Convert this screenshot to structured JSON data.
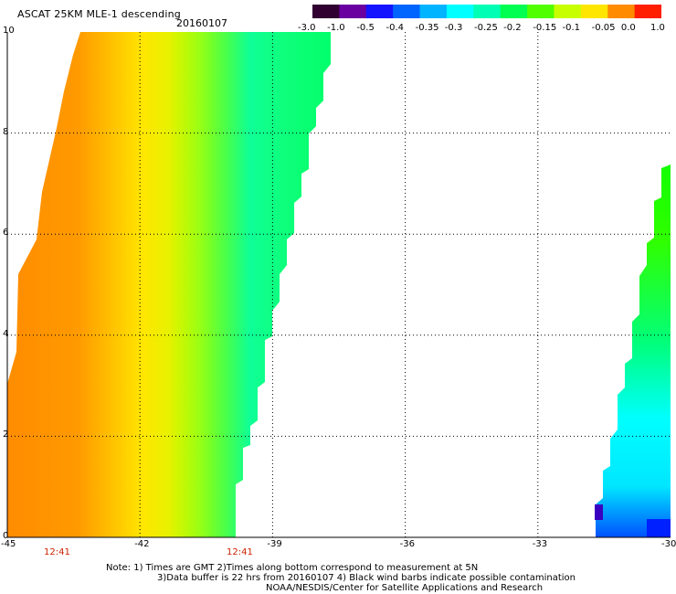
{
  "header": {
    "title": "ASCAT 25KM MLE-1 descending",
    "date": "20160107"
  },
  "colorbar": {
    "labels": [
      "-3.0",
      "-1.0",
      "-0.5",
      "-0.4",
      "-0.35",
      "-0.3",
      "-0.25",
      "-0.2",
      "-0.15",
      "-0.1",
      "-0.05",
      "0.0",
      "1.0"
    ],
    "colors": [
      "#300030",
      "#6a00a0",
      "#1414ff",
      "#0064ff",
      "#00b4ff",
      "#00ffff",
      "#00ffb4",
      "#00ff50",
      "#50ff00",
      "#c8ff00",
      "#ffe600",
      "#ff8c00",
      "#ff1e00"
    ]
  },
  "axes": {
    "x_ticks": [
      "-45",
      "-42",
      "-39",
      "-36",
      "-33",
      "-30"
    ],
    "y_ticks": [
      "0",
      "2",
      "4",
      "6",
      "8",
      "10"
    ]
  },
  "times": [
    "12:41",
    "12:41"
  ],
  "notes": [
    "Note: 1) Times are GMT 2)Times along bottom correspond to measurement at 5N",
    "3)Data buffer is 22 hrs from 20160107 4) Black wind barbs indicate possible contamination",
    "NOAA/NESDIS/Center for Satellite Applications and Research"
  ]
}
